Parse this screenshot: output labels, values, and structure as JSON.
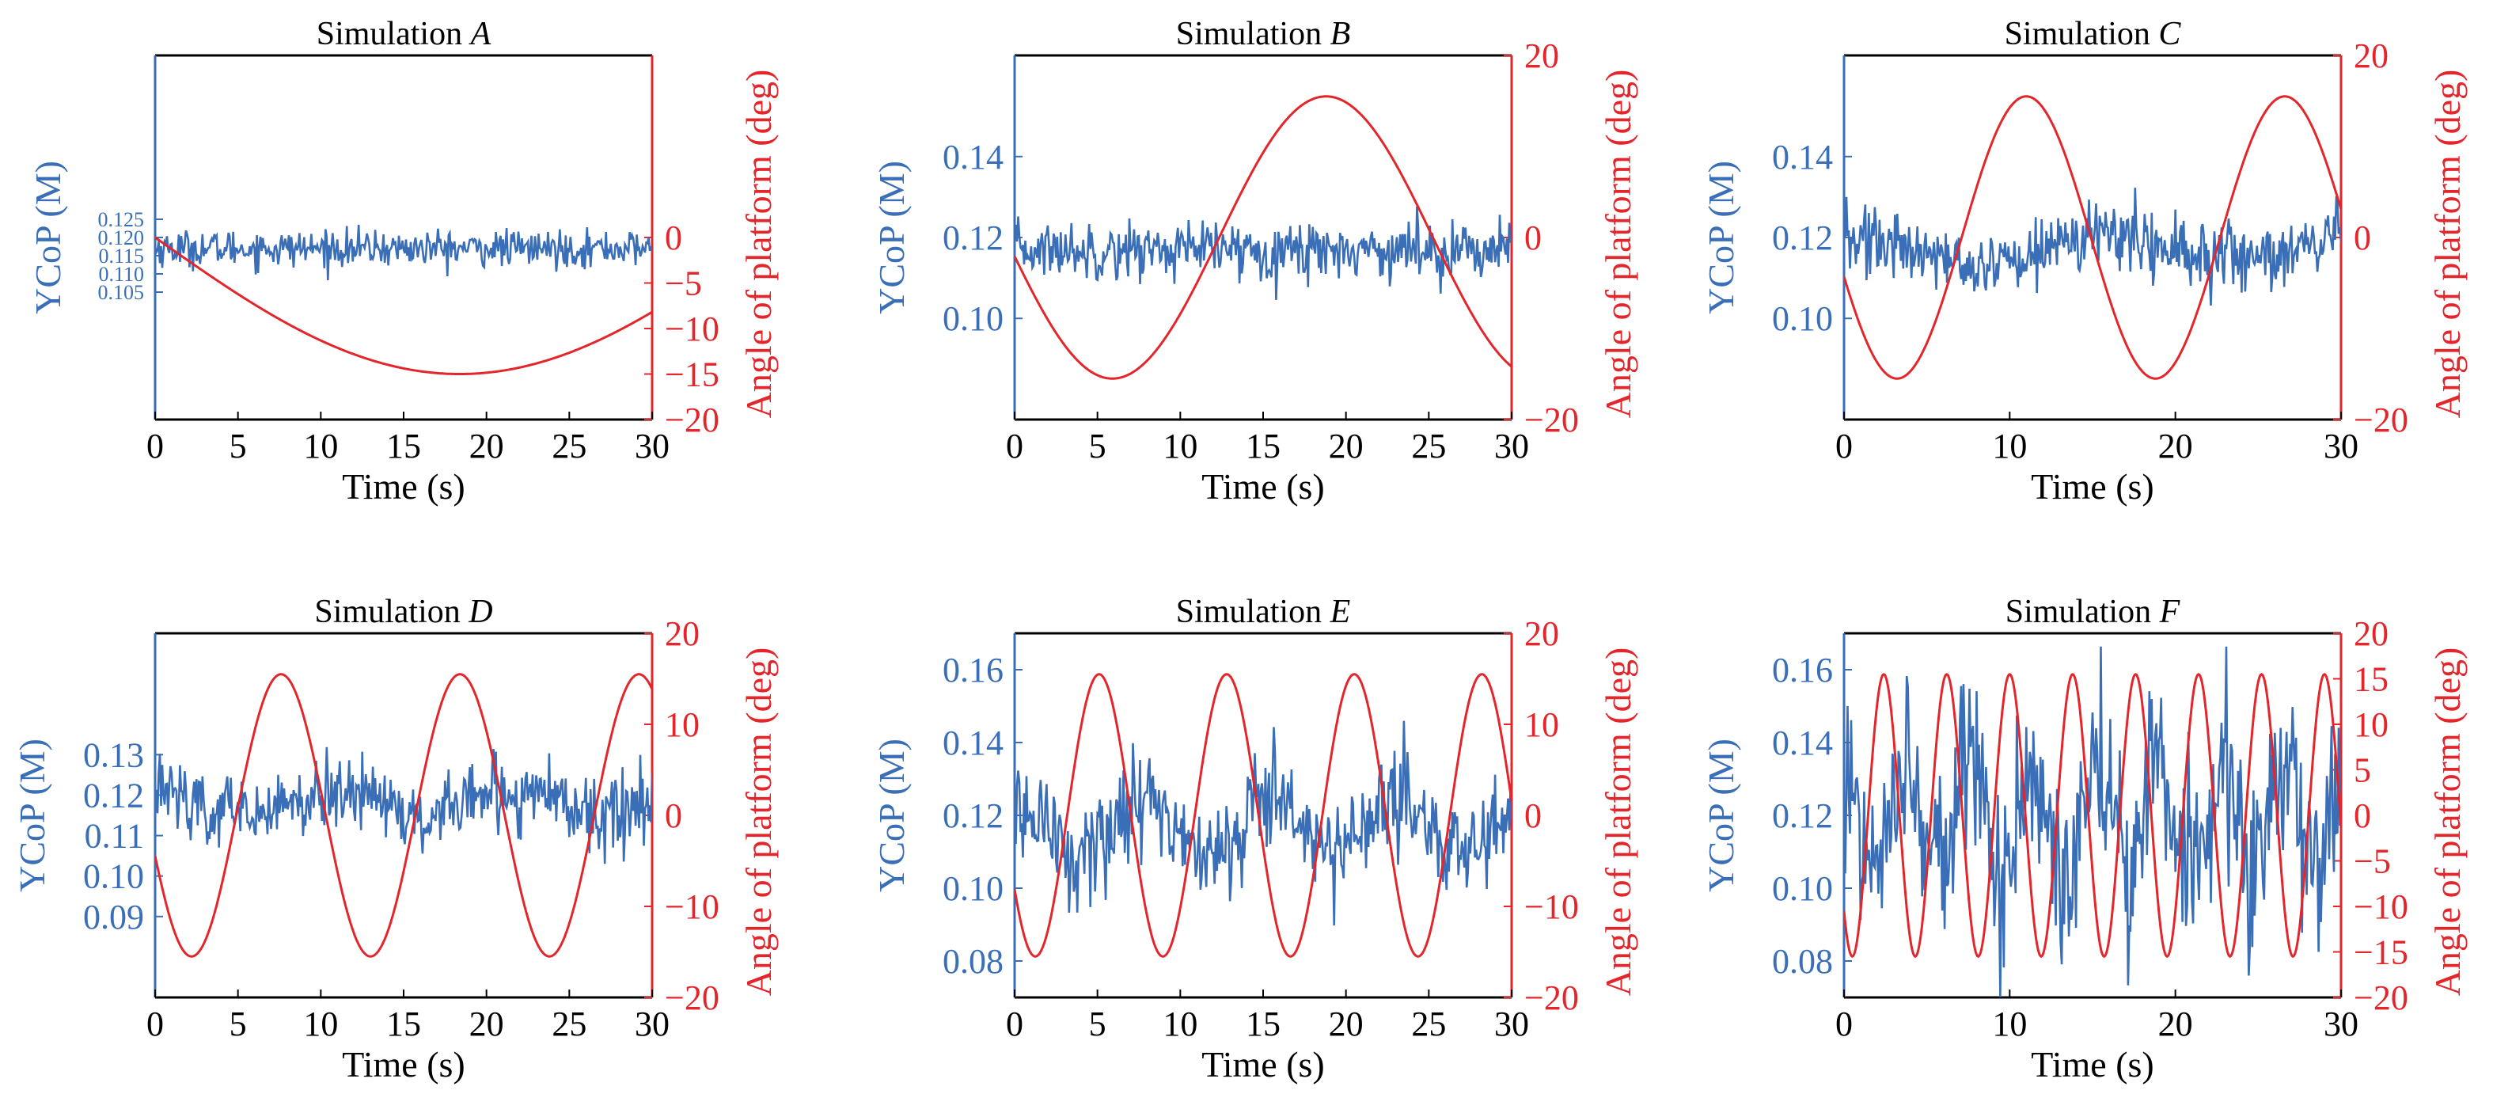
{
  "colors": {
    "left_axis": "#3A6FB8",
    "right_axis": "#E3262B",
    "frame": "#000000"
  },
  "chart_data": [
    {
      "type": "line",
      "title_prefix": "Simulation ",
      "title_letter": "A",
      "xlabel": "Time (s)",
      "ylabel": "YCoP (M)",
      "y2label": "Angle of platform (deg)",
      "xlim": [
        0,
        30
      ],
      "ylim": [
        0.07,
        0.17
      ],
      "y2lim": [
        -20,
        20
      ],
      "xticks": [
        "0",
        "5",
        "10",
        "15",
        "20",
        "25",
        "30"
      ],
      "yticks": [
        "0.105",
        "0.110",
        "0.115",
        "0.120",
        "0.125"
      ],
      "y2ticks": [
        "-20",
        "-15",
        "-10",
        "-5",
        "0"
      ],
      "series": [
        {
          "axis": "left",
          "kind": "noise",
          "mean": 0.117,
          "noise_sd": 0.0025,
          "spike_sd": 0,
          "period": 0
        },
        {
          "axis": "right",
          "kind": "sine",
          "amplitude": 15,
          "period": 73.5,
          "phase_start": -1.5,
          "t0": 0
        }
      ]
    },
    {
      "type": "line",
      "title_prefix": "Simulation ",
      "title_letter": "B",
      "xlabel": "Time (s)",
      "ylabel": "YCoP (M)",
      "y2label": "Angle of platform (deg)",
      "xlim": [
        0,
        30
      ],
      "ylim": [
        0.075,
        0.165
      ],
      "y2lim": [
        -20,
        20
      ],
      "xticks": [
        "0",
        "5",
        "10",
        "15",
        "20",
        "25",
        "30"
      ],
      "yticks": [
        "0.10",
        "0.12",
        "0.14"
      ],
      "y2ticks": [
        "-20",
        "0",
        "20"
      ],
      "series": [
        {
          "axis": "left",
          "kind": "noise",
          "mean": 0.117,
          "noise_sd": 0.0035,
          "spike_sd": 0,
          "period": 0
        },
        {
          "axis": "right",
          "kind": "sine",
          "amplitude": 15.5,
          "period": 25.8,
          "peak_time": 18.8
        }
      ]
    },
    {
      "type": "line",
      "title_prefix": "Simulation ",
      "title_letter": "C",
      "xlabel": "Time (s)",
      "ylabel": "YCoP (M)",
      "y2label": "Angle of platform (deg)",
      "xlim": [
        0,
        30
      ],
      "ylim": [
        0.075,
        0.165
      ],
      "y2lim": [
        -20,
        20
      ],
      "xticks": [
        "0",
        "10",
        "20",
        "30"
      ],
      "yticks": [
        "0.10",
        "0.12",
        "0.14"
      ],
      "y2ticks": [
        "-20",
        "0",
        "20"
      ],
      "series": [
        {
          "axis": "left",
          "kind": "noise",
          "mean": 0.117,
          "noise_sd": 0.004,
          "spike_sd": 0.004,
          "period": 15.6
        },
        {
          "axis": "right",
          "kind": "sine",
          "amplitude": 15.5,
          "period": 15.6,
          "peak_time": 11.0
        }
      ]
    },
    {
      "type": "line",
      "title_prefix": "Simulation ",
      "title_letter": "D",
      "xlabel": "Time (s)",
      "ylabel": "YCoP (M)",
      "y2label": "Angle of platform (deg)",
      "xlim": [
        0,
        30
      ],
      "ylim": [
        0.07,
        0.16
      ],
      "y2lim": [
        -20,
        20
      ],
      "xticks": [
        "0",
        "5",
        "10",
        "15",
        "20",
        "25",
        "30"
      ],
      "yticks": [
        "0.09",
        "0.10",
        "0.11",
        "0.12",
        "0.13"
      ],
      "y2ticks": [
        "-20",
        "-10",
        "0",
        "10",
        "20"
      ],
      "series": [
        {
          "axis": "left",
          "kind": "noise",
          "mean": 0.118,
          "noise_sd": 0.0045,
          "spike_sd": 0.004,
          "period": 10.8
        },
        {
          "axis": "right",
          "kind": "sine",
          "amplitude": 15.5,
          "period": 10.8,
          "peak_time": 7.6
        }
      ]
    },
    {
      "type": "line",
      "title_prefix": "Simulation ",
      "title_letter": "E",
      "xlabel": "Time (s)",
      "ylabel": "YCoP (M)",
      "y2label": "Angle of platform (deg)",
      "xlim": [
        0,
        30
      ],
      "ylim": [
        0.07,
        0.17
      ],
      "y2lim": [
        -20,
        20
      ],
      "xticks": [
        "0",
        "5",
        "10",
        "15",
        "20",
        "25",
        "30"
      ],
      "yticks": [
        "0.08",
        "0.10",
        "0.12",
        "0.14",
        "0.16"
      ],
      "y2ticks": [
        "-20",
        "-10",
        "0",
        "10",
        "20"
      ],
      "series": [
        {
          "axis": "left",
          "kind": "noise",
          "mean": 0.116,
          "noise_sd": 0.006,
          "spike_sd": 0.008,
          "period": 7.7
        },
        {
          "axis": "right",
          "kind": "sine",
          "amplitude": 15.5,
          "period": 7.7,
          "peak_time": 5.1
        }
      ]
    },
    {
      "type": "line",
      "title_prefix": "Simulation ",
      "title_letter": "F",
      "xlabel": "Time (s)",
      "ylabel": "YCoP (M)",
      "y2label": "Angle of platform (deg)",
      "xlim": [
        0,
        30
      ],
      "ylim": [
        0.07,
        0.17
      ],
      "y2lim": [
        -20,
        20
      ],
      "xticks": [
        "0",
        "10",
        "20",
        "30"
      ],
      "yticks": [
        "0.08",
        "0.10",
        "0.12",
        "0.14",
        "0.16"
      ],
      "y2ticks": [
        "-20",
        "-15",
        "-10",
        "-5",
        "0",
        "5",
        "10",
        "15",
        "20"
      ],
      "series": [
        {
          "axis": "left",
          "kind": "noise",
          "mean": 0.118,
          "noise_sd": 0.01,
          "spike_sd": 0.018,
          "period": 3.8
        },
        {
          "axis": "right",
          "kind": "sine",
          "amplitude": 15.5,
          "period": 3.8,
          "peak_time": 2.4
        }
      ]
    }
  ]
}
